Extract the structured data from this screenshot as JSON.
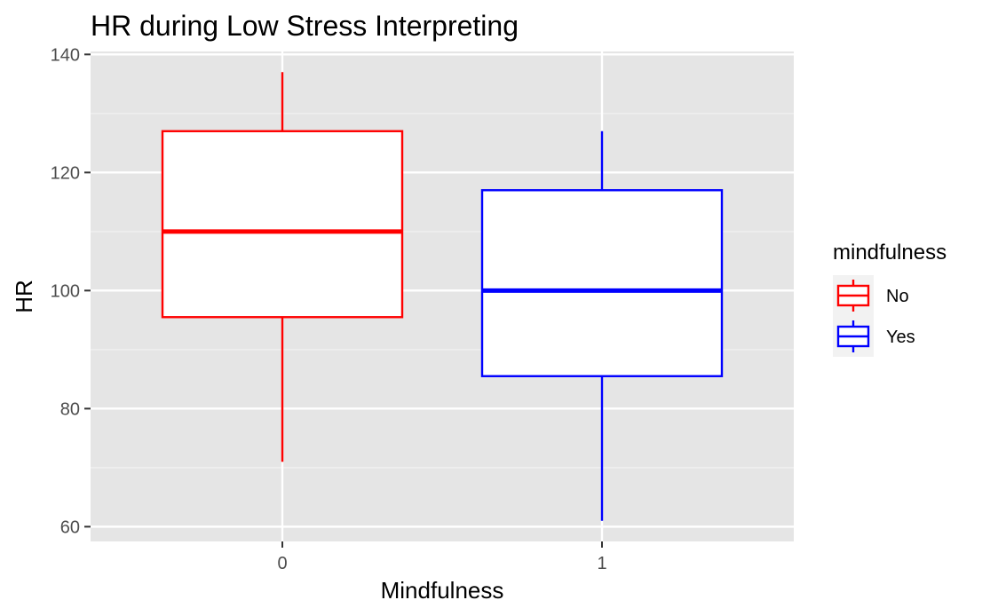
{
  "chart_data": {
    "type": "boxplot",
    "title": "HR during Low Stress Interpreting",
    "xlabel": "Mindfulness",
    "ylabel": "HR",
    "ylim": [
      57.5,
      140.5
    ],
    "y_ticks": [
      60,
      80,
      100,
      120,
      140
    ],
    "grid": true,
    "legend_position": "right",
    "legend_title": "mindfulness",
    "categories": [
      "0",
      "1"
    ],
    "series": [
      {
        "name": "No",
        "category": "0",
        "color": "#ff0000",
        "whisker_low": 71,
        "q1": 95.5,
        "median": 110,
        "q3": 127,
        "whisker_high": 137
      },
      {
        "name": "Yes",
        "category": "1",
        "color": "#0000ff",
        "whisker_low": 61,
        "q1": 85.5,
        "median": 100,
        "q3": 117,
        "whisker_high": 127
      }
    ]
  },
  "colors": {
    "panel_background": "#e5e5e5",
    "grid_major": "#ffffff",
    "grid_minor": "#f2f2f2",
    "box_fill": "#ffffff",
    "tick_text": "#4d4d4d"
  }
}
